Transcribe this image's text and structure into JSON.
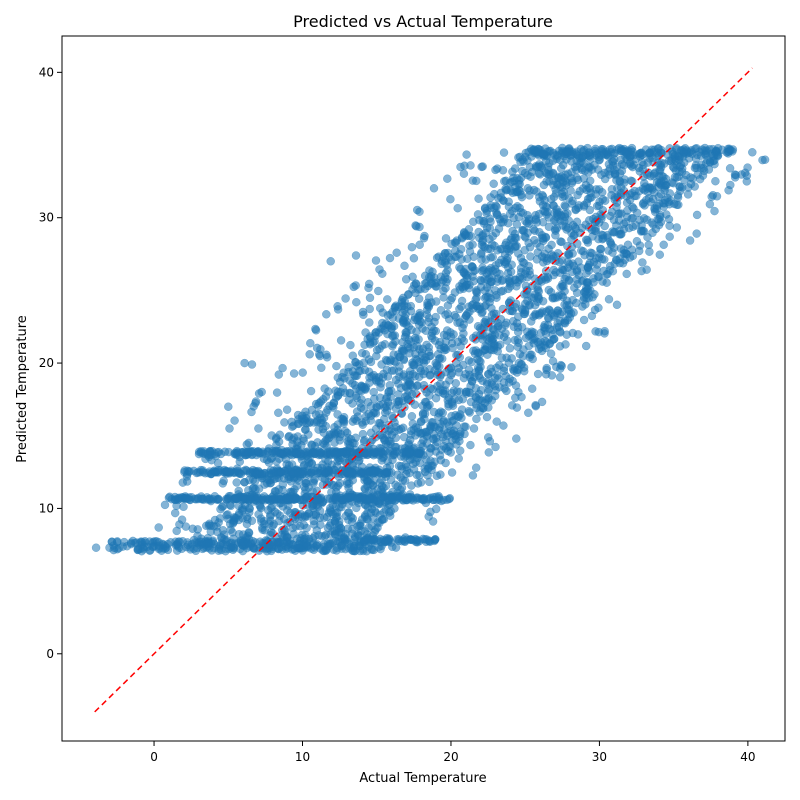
{
  "chart_data": {
    "type": "scatter",
    "title": "Predicted vs Actual Temperature",
    "xlabel": "Actual Temperature",
    "ylabel": "Predicted Temperature",
    "xlim": [
      -6.2,
      42.5
    ],
    "ylim": [
      -6.0,
      42.5
    ],
    "xticks": [
      0,
      10,
      20,
      30,
      40
    ],
    "yticks": [
      0,
      10,
      20,
      30,
      40
    ],
    "grid": false,
    "legend": "none",
    "point_color": "#1f77b4",
    "point_alpha": 0.55,
    "reference_line": {
      "style": "dashed",
      "color": "#ff0000",
      "x": [
        -4.0,
        40.3
      ],
      "y": [
        -4.0,
        40.3
      ]
    },
    "bands": [
      {
        "y_center": 7.4,
        "y_spread": 0.35,
        "x_min": -3.0,
        "x_max": 15.5
      },
      {
        "y_center": 7.8,
        "y_spread": 0.15,
        "x_min": 14.0,
        "x_max": 19.0
      },
      {
        "y_center": 10.7,
        "y_spread": 0.15,
        "x_min": 1.0,
        "x_max": 20.0
      },
      {
        "y_center": 12.5,
        "y_spread": 0.15,
        "x_min": 2.0,
        "x_max": 16.0
      },
      {
        "y_center": 13.8,
        "y_spread": 0.15,
        "x_min": 3.0,
        "x_max": 18.0
      },
      {
        "y_center": 34.5,
        "y_spread": 0.3,
        "x_min": 25.0,
        "x_max": 39.0
      }
    ],
    "cloud": {
      "parallelogram": [
        [
          1,
          7.2
        ],
        [
          15,
          7.2
        ],
        [
          40,
          34.6
        ],
        [
          24,
          34.6
        ]
      ],
      "outliers": [
        [
          -3.9,
          7.3
        ],
        [
          -3.0,
          7.3
        ],
        [
          40.3,
          34.5
        ],
        [
          38.8,
          33.4
        ],
        [
          11.9,
          27.0
        ],
        [
          6.1,
          20.0
        ],
        [
          6.6,
          19.9
        ],
        [
          18.8,
          9.1
        ],
        [
          21.7,
          12.8
        ],
        [
          13.6,
          27.4
        ],
        [
          25.7,
          17.1
        ],
        [
          24.4,
          14.8
        ],
        [
          5.0,
          17.0
        ]
      ]
    }
  }
}
